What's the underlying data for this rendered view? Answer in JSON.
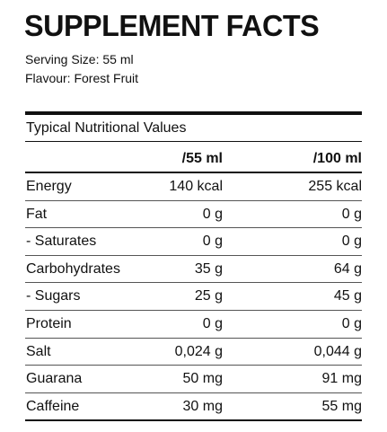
{
  "title": "SUPPLEMENT FACTS",
  "serving_size": "Serving Size: 55 ml",
  "flavour": "Flavour: Forest Fruit",
  "table": {
    "caption": "Typical Nutritional Values",
    "headers": [
      "/55 ml",
      "/100 ml"
    ],
    "rows": [
      [
        "Energy",
        "140 kcal",
        "255 kcal"
      ],
      [
        "Fat",
        "0 g",
        "0 g"
      ],
      [
        "- Saturates",
        "0 g",
        "0 g"
      ],
      [
        "Carbohydrates",
        "35 g",
        "64 g"
      ],
      [
        "- Sugars",
        "25 g",
        "45 g"
      ],
      [
        "Protein",
        "0 g",
        "0 g"
      ],
      [
        "Salt",
        "0,024 g",
        "0,044 g"
      ],
      [
        "Guarana",
        "50 mg",
        "91 mg"
      ],
      [
        "Caffeine",
        "30 mg",
        "55 mg"
      ]
    ]
  }
}
